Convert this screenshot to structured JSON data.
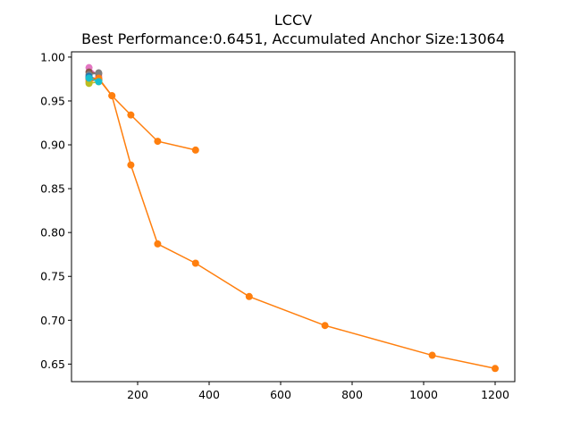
{
  "chart_data": {
    "type": "line",
    "title": "LCCV",
    "subtitle": "Best Performance:0.6451, Accumulated Anchor Size:13064",
    "xlabel": "",
    "ylabel": "",
    "xlim": [
      15,
      1255
    ],
    "ylim": [
      0.63,
      1.006
    ],
    "xticks": [
      200,
      400,
      600,
      800,
      1000,
      1200
    ],
    "xtick_labels": [
      "200",
      "400",
      "600",
      "800",
      "1000",
      "1200"
    ],
    "yticks": [
      0.65,
      0.7,
      0.75,
      0.8,
      0.85,
      0.9,
      0.95,
      1.0
    ],
    "ytick_labels": [
      "0.65",
      "0.70",
      "0.75",
      "0.80",
      "0.85",
      "0.90",
      "0.95",
      "1.00"
    ],
    "grid": false,
    "series": [
      {
        "color": "#e377c2",
        "x": [
          64,
          91
        ],
        "y": [
          0.988,
          0.978
        ]
      },
      {
        "color": "#8c564b",
        "x": [
          64,
          91
        ],
        "y": [
          0.983,
          0.981
        ]
      },
      {
        "color": "#7f7f7f",
        "x": [
          64,
          91
        ],
        "y": [
          0.98,
          0.982
        ]
      },
      {
        "color": "#9467bd",
        "x": [
          64,
          91
        ],
        "y": [
          0.977,
          0.975
        ]
      },
      {
        "color": "#d62728",
        "x": [
          64,
          91
        ],
        "y": [
          0.975,
          0.974
        ]
      },
      {
        "color": "#2ca02c",
        "x": [
          64,
          91
        ],
        "y": [
          0.976,
          0.973
        ]
      },
      {
        "color": "#1f77b4",
        "x": [
          64,
          91
        ],
        "y": [
          0.978,
          0.974
        ]
      },
      {
        "color": "#ff7f0e",
        "x": [
          64,
          91,
          128,
          181,
          256,
          362
        ],
        "y": [
          0.972,
          0.975,
          0.956,
          0.934,
          0.904,
          0.894
        ]
      },
      {
        "color": "#ff7f0e",
        "x": [
          64,
          91,
          128,
          181,
          256,
          362,
          512,
          724,
          1024,
          1200
        ],
        "y": [
          0.975,
          0.976,
          0.956,
          0.877,
          0.787,
          0.765,
          0.727,
          0.694,
          0.66,
          0.645
        ]
      },
      {
        "color": "#bcbd22",
        "x": [
          64,
          91
        ],
        "y": [
          0.97,
          0.972
        ]
      },
      {
        "color": "#17becf",
        "x": [
          64,
          91
        ],
        "y": [
          0.976,
          0.972
        ]
      }
    ]
  }
}
